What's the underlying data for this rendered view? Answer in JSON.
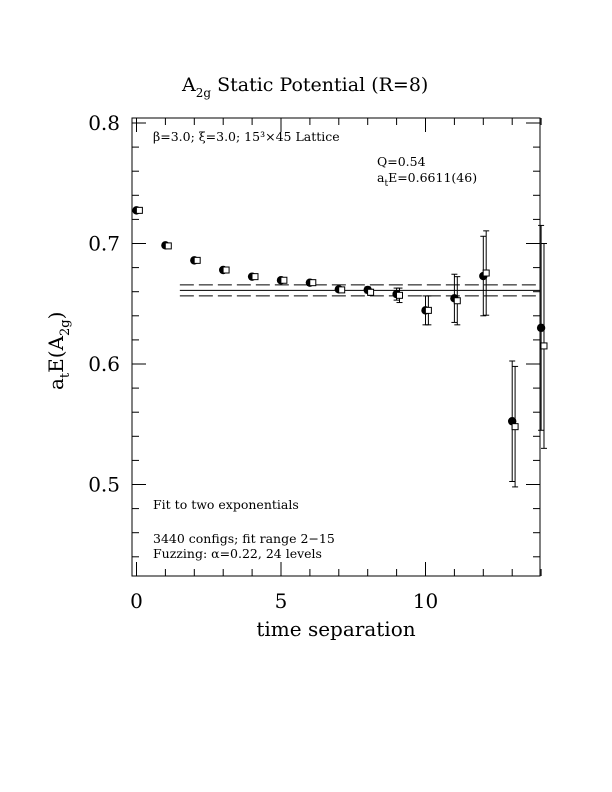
{
  "chart_data": {
    "type": "scatter",
    "title": "A",
    "title_sub": "2g",
    "title_rest": " Static Potential (R=8)",
    "xlabel": "time separation",
    "ylabel_main": "a",
    "ylabel_sub1": "t",
    "ylabel_mid": "E(A",
    "ylabel_sub2": "2g",
    "ylabel_end": ")",
    "xlim": [
      0,
      14
    ],
    "ylim": [
      0.42,
      0.8
    ],
    "x_ticks": [
      0,
      5,
      10
    ],
    "x_tick_labels": [
      "0",
      "5",
      "10"
    ],
    "y_ticks": [
      0.5,
      0.6,
      0.7,
      0.8
    ],
    "y_tick_labels": [
      "0.5",
      "0.6",
      "0.7",
      "0.8"
    ],
    "annotations": {
      "lattice": "β=3.0; ξ=3.0; 15³×45 Lattice",
      "q_value": "Q=0.54",
      "energy_prefix": "a",
      "energy_sub": "t",
      "energy_rest": "E=0.6611(46)",
      "fit_type": "Fit to two exponentials",
      "configs": "3440 configs; fit range 2−15",
      "fuzzing": "Fuzzing: α=0.22, 24 levels"
    },
    "fit": {
      "value": 0.6611,
      "error": 0.0046,
      "x_range": [
        1.5,
        14
      ]
    },
    "series": [
      {
        "marker": "filled-circle",
        "x": [
          0,
          1,
          2,
          3,
          4,
          5,
          6,
          7,
          8,
          9,
          10,
          11,
          12,
          13,
          14
        ],
        "y": [
          0.7275,
          0.6985,
          0.686,
          0.678,
          0.6725,
          0.6695,
          0.6675,
          0.662,
          0.6615,
          0.658,
          0.6445,
          0.6545,
          0.673,
          0.5525,
          0.63
        ],
        "err": [
          0.0008,
          0.0008,
          0.0009,
          0.001,
          0.0012,
          0.0014,
          0.0016,
          0.002,
          0.0025,
          0.005,
          0.012,
          0.02,
          0.033,
          0.05,
          0.085
        ]
      },
      {
        "marker": "open-square",
        "x": [
          0.1,
          1.1,
          2.1,
          3.1,
          4.1,
          5.1,
          6.1,
          7.1,
          8.1,
          9.1,
          10.1,
          11.1,
          12.1,
          13.1,
          14.1
        ],
        "y": [
          0.7275,
          0.698,
          0.686,
          0.678,
          0.6725,
          0.6695,
          0.6675,
          0.6615,
          0.6595,
          0.657,
          0.6445,
          0.6525,
          0.6755,
          0.548,
          0.615
        ],
        "err": [
          0.0008,
          0.0008,
          0.0009,
          0.001,
          0.0012,
          0.0014,
          0.0016,
          0.002,
          0.0025,
          0.006,
          0.012,
          0.02,
          0.035,
          0.05,
          0.085
        ]
      }
    ]
  }
}
